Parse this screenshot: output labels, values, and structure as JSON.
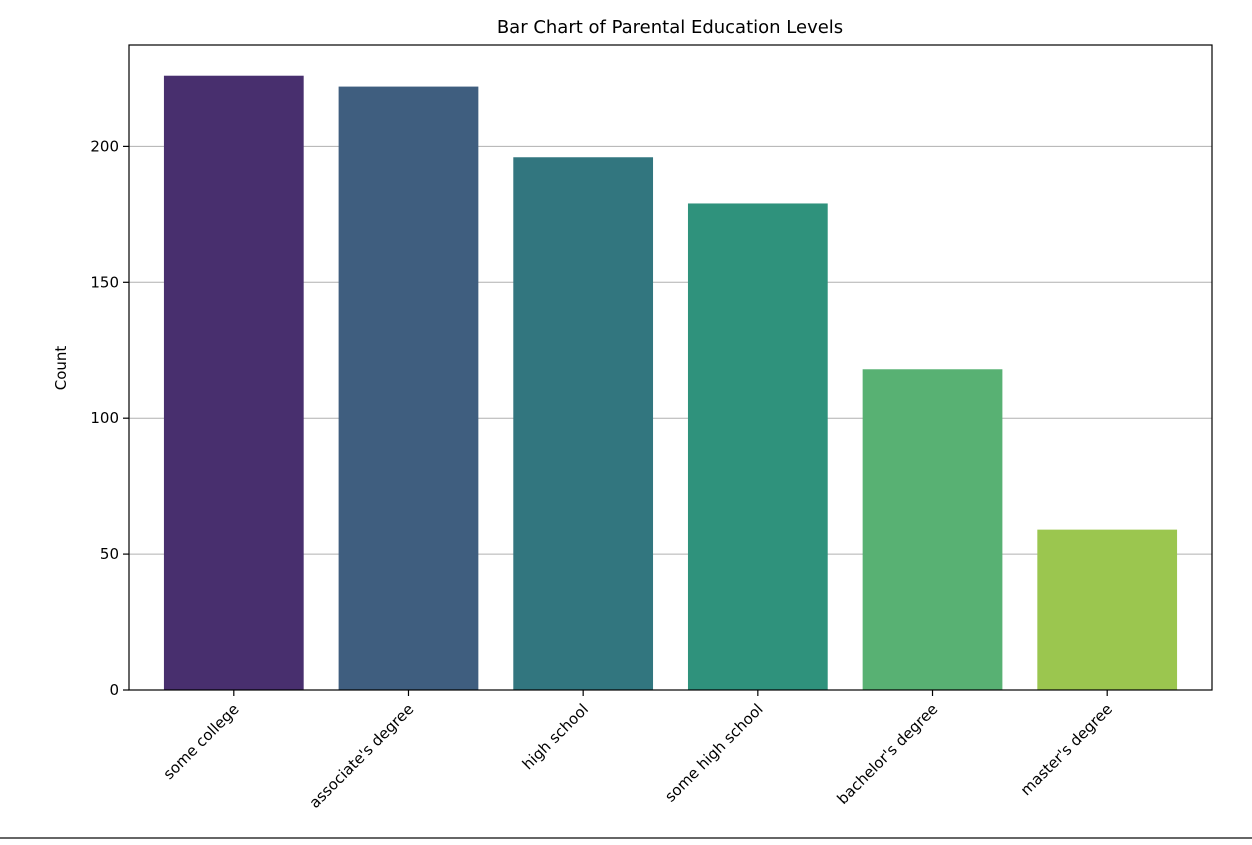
{
  "chart_data": {
    "type": "bar",
    "title": "Bar Chart of Parental Education Levels",
    "xlabel": "",
    "ylabel": "Count",
    "categories": [
      "some college",
      "associate's degree",
      "high school",
      "some high school",
      "bachelor's degree",
      "master's degree"
    ],
    "values": [
      226,
      222,
      196,
      179,
      118,
      59
    ],
    "colors": [
      "#482f6e",
      "#3f5e7f",
      "#32767f",
      "#2f927c",
      "#58b173",
      "#9bc64f"
    ],
    "ylim": [
      0,
      237.3
    ],
    "yticks": [
      0,
      50,
      100,
      150,
      200
    ],
    "grid": "y",
    "grid_color": "#b0b0b0",
    "legend": "none"
  }
}
